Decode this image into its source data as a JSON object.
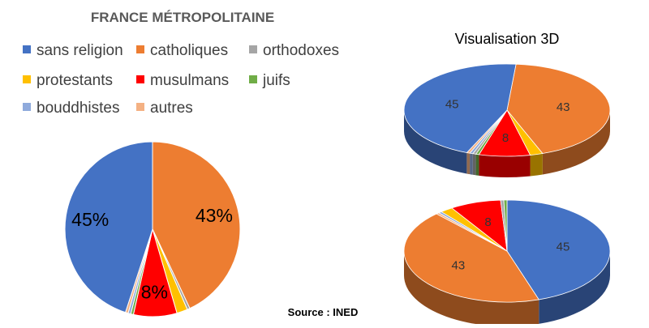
{
  "title": "FRANCE MÉTROPOLITAINE",
  "title_3d": "Visualisation 3D",
  "source": "Source : INED",
  "colors": {
    "sans religion": "#4472C4",
    "catholiques": "#ED7D31",
    "orthodoxes": "#A5A5A5",
    "protestants": "#FFC000",
    "musulmans": "#FF0000",
    "juifs": "#70AD47",
    "bouddhistes": "#8FAADC",
    "autres": "#F4B183"
  },
  "chart_data": [
    {
      "type": "pie",
      "title": "FRANCE MÉTROPOLITAINE",
      "legend_position": "top",
      "categories": [
        "sans religion",
        "catholiques",
        "orthodoxes",
        "protestants",
        "musulmans",
        "juifs",
        "bouddhistes",
        "autres"
      ],
      "values": [
        45,
        43,
        0.5,
        2,
        8,
        0.5,
        0.5,
        0.5
      ],
      "data_labels": [
        "45%",
        "43%",
        "",
        "",
        "8%",
        "",
        "",
        ""
      ]
    },
    {
      "type": "pie",
      "title": "Visualisation 3D",
      "categories": [
        "sans religion",
        "catholiques",
        "orthodoxes",
        "protestants",
        "musulmans",
        "juifs",
        "bouddhistes",
        "autres"
      ],
      "values": [
        45,
        43,
        0.5,
        2,
        8,
        0.5,
        0.5,
        0.5
      ],
      "data_labels": [
        "45",
        "43",
        "",
        "",
        "8",
        "",
        "",
        ""
      ]
    },
    {
      "type": "pie",
      "categories": [
        "sans religion",
        "catholiques",
        "orthodoxes",
        "protestants",
        "musulmans",
        "juifs",
        "bouddhistes",
        "autres"
      ],
      "values": [
        45,
        43,
        0.5,
        2,
        8,
        0.5,
        0.5,
        0.5
      ],
      "data_labels": [
        "45",
        "43",
        "",
        "",
        "8",
        "",
        "",
        ""
      ]
    }
  ]
}
